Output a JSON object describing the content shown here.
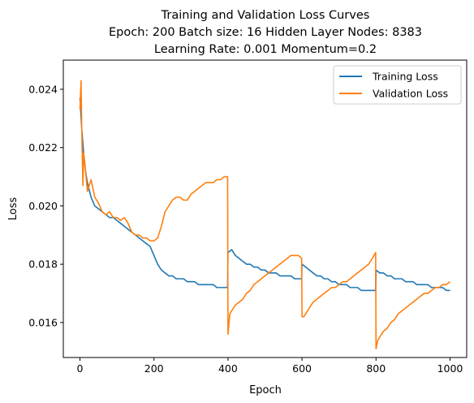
{
  "chart_data": {
    "type": "line",
    "title_lines": [
      "Training and Validation Loss Curves",
      "Epoch: 200 Batch size: 16 Hidden Layer Nodes: 8383",
      "Learning Rate: 0.001   Momentum=0.2"
    ],
    "xlabel": "Epoch",
    "ylabel": "Loss",
    "xlim": [
      -45,
      1045
    ],
    "ylim": [
      0.0148,
      0.025
    ],
    "x_ticks": [
      0,
      200,
      400,
      600,
      800,
      1000
    ],
    "x_tick_labels": [
      "0",
      "200",
      "400",
      "600",
      "800",
      "1000"
    ],
    "y_ticks": [
      0.016,
      0.018,
      0.02,
      0.022,
      0.024
    ],
    "y_tick_labels": [
      "0.016",
      "0.018",
      "0.020",
      "0.022",
      "0.024"
    ],
    "grid": false,
    "legend_position": "top-right",
    "series": [
      {
        "name": "Training Loss",
        "color": "#1f77b4",
        "x": [
          0,
          5,
          10,
          15,
          20,
          30,
          40,
          50,
          60,
          70,
          80,
          90,
          100,
          110,
          120,
          130,
          140,
          150,
          160,
          170,
          180,
          190,
          200,
          210,
          220,
          230,
          240,
          250,
          260,
          270,
          280,
          290,
          300,
          310,
          320,
          330,
          340,
          350,
          360,
          370,
          380,
          390,
          399,
          400,
          410,
          420,
          430,
          440,
          450,
          460,
          470,
          480,
          490,
          500,
          510,
          520,
          530,
          540,
          550,
          560,
          570,
          580,
          590,
          599,
          600,
          610,
          620,
          630,
          640,
          650,
          660,
          670,
          680,
          690,
          700,
          710,
          720,
          730,
          740,
          750,
          760,
          770,
          780,
          790,
          799,
          800,
          810,
          820,
          830,
          840,
          850,
          860,
          870,
          880,
          890,
          900,
          910,
          920,
          930,
          940,
          950,
          960,
          970,
          980,
          990,
          1000
        ],
        "y": [
          0.0237,
          0.0226,
          0.0218,
          0.0212,
          0.0208,
          0.0203,
          0.02,
          0.0199,
          0.0198,
          0.0197,
          0.0196,
          0.0196,
          0.0195,
          0.0194,
          0.0193,
          0.0192,
          0.0191,
          0.019,
          0.0189,
          0.0188,
          0.0187,
          0.0186,
          0.0183,
          0.018,
          0.0178,
          0.0177,
          0.0176,
          0.0176,
          0.0175,
          0.0175,
          0.0175,
          0.0174,
          0.0174,
          0.0174,
          0.0173,
          0.0173,
          0.0173,
          0.0173,
          0.0173,
          0.0172,
          0.0172,
          0.0172,
          0.0172,
          0.0184,
          0.0185,
          0.0183,
          0.0182,
          0.0181,
          0.018,
          0.018,
          0.0179,
          0.0179,
          0.0178,
          0.0178,
          0.0177,
          0.0177,
          0.0177,
          0.0176,
          0.0176,
          0.0176,
          0.0176,
          0.0175,
          0.0175,
          0.0175,
          0.018,
          0.0179,
          0.0178,
          0.0177,
          0.0176,
          0.0176,
          0.0175,
          0.0175,
          0.0174,
          0.0174,
          0.0173,
          0.0173,
          0.0173,
          0.0172,
          0.0172,
          0.0172,
          0.0171,
          0.0171,
          0.0171,
          0.0171,
          0.0171,
          0.0178,
          0.0177,
          0.0177,
          0.0176,
          0.0176,
          0.0175,
          0.0175,
          0.0175,
          0.0174,
          0.0174,
          0.0174,
          0.0173,
          0.0173,
          0.0173,
          0.0173,
          0.0172,
          0.0172,
          0.0172,
          0.0172,
          0.0171,
          0.0171
        ]
      },
      {
        "name": "Validation Loss",
        "color": "#ff7f0e",
        "x": [
          0,
          3,
          5,
          8,
          10,
          15,
          20,
          30,
          40,
          50,
          60,
          70,
          80,
          90,
          100,
          110,
          120,
          130,
          140,
          150,
          160,
          170,
          180,
          190,
          200,
          210,
          220,
          230,
          240,
          250,
          260,
          270,
          280,
          290,
          300,
          310,
          320,
          330,
          340,
          350,
          360,
          370,
          380,
          390,
          399,
          400,
          405,
          410,
          420,
          430,
          440,
          450,
          460,
          470,
          480,
          490,
          500,
          510,
          520,
          530,
          540,
          550,
          560,
          570,
          580,
          590,
          599,
          600,
          605,
          610,
          620,
          630,
          640,
          650,
          660,
          670,
          680,
          690,
          700,
          710,
          720,
          730,
          740,
          750,
          760,
          770,
          780,
          790,
          799,
          800,
          805,
          810,
          820,
          830,
          840,
          850,
          860,
          870,
          880,
          890,
          900,
          910,
          920,
          930,
          940,
          950,
          960,
          970,
          980,
          990,
          1000
        ],
        "y": [
          0.0233,
          0.0243,
          0.0225,
          0.0207,
          0.0218,
          0.0212,
          0.0205,
          0.0209,
          0.0203,
          0.0201,
          0.0198,
          0.0197,
          0.0198,
          0.0196,
          0.0196,
          0.0195,
          0.0196,
          0.0194,
          0.0191,
          0.019,
          0.019,
          0.0189,
          0.0189,
          0.0188,
          0.0188,
          0.0189,
          0.0193,
          0.0198,
          0.02,
          0.0202,
          0.0203,
          0.0203,
          0.0202,
          0.0202,
          0.0204,
          0.0205,
          0.0206,
          0.0207,
          0.0208,
          0.0208,
          0.0208,
          0.0209,
          0.0209,
          0.021,
          0.021,
          0.0156,
          0.0163,
          0.0164,
          0.0166,
          0.0167,
          0.0168,
          0.017,
          0.0171,
          0.0173,
          0.0174,
          0.0175,
          0.0176,
          0.0177,
          0.0178,
          0.0179,
          0.018,
          0.0181,
          0.0182,
          0.0183,
          0.0183,
          0.0183,
          0.0182,
          0.0162,
          0.0162,
          0.0163,
          0.0165,
          0.0167,
          0.0168,
          0.0169,
          0.017,
          0.0171,
          0.0172,
          0.0172,
          0.0173,
          0.0174,
          0.0174,
          0.0175,
          0.0176,
          0.0177,
          0.0178,
          0.0179,
          0.018,
          0.0182,
          0.0184,
          0.0151,
          0.0154,
          0.0155,
          0.0157,
          0.0158,
          0.016,
          0.0161,
          0.0163,
          0.0164,
          0.0165,
          0.0166,
          0.0167,
          0.0168,
          0.0169,
          0.017,
          0.017,
          0.0171,
          0.0172,
          0.0172,
          0.0173,
          0.0173,
          0.0174
        ]
      }
    ]
  }
}
